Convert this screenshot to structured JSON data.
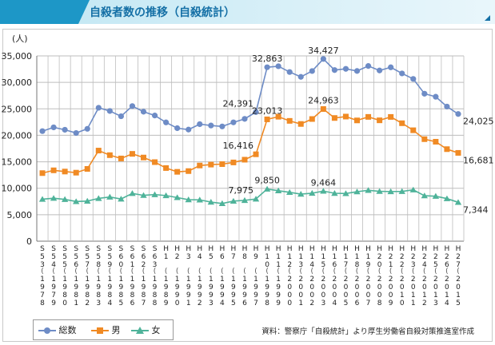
{
  "header": {
    "title": "自殺者数の推移（自殺統計）"
  },
  "source": "資料：警察庁「自殺統計」より厚生労働省自殺対策推進室作成",
  "colors": {
    "total": "#6e8cc6",
    "male": "#f08a24",
    "female": "#4fb39a",
    "grid": "#bdbdbd"
  },
  "chart_data": {
    "type": "line",
    "title": "自殺者数の推移（自殺統計）",
    "ylabel": "(人)",
    "ylim": [
      0,
      35000
    ],
    "yticks": [
      0,
      5000,
      10000,
      15000,
      20000,
      25000,
      30000,
      35000
    ],
    "ytick_labels": [
      "0",
      "5,000",
      "10,000",
      "15,000",
      "20,000",
      "25,000",
      "30,000",
      "35,000"
    ],
    "grid": true,
    "legend": "bottom-left",
    "categories": [
      {
        "era": "S53",
        "year": "1978"
      },
      {
        "era": "S54",
        "year": "1979"
      },
      {
        "era": "S55",
        "year": "1980"
      },
      {
        "era": "S56",
        "year": "1981"
      },
      {
        "era": "S57",
        "year": "1982"
      },
      {
        "era": "S58",
        "year": "1983"
      },
      {
        "era": "S59",
        "year": "1984"
      },
      {
        "era": "S60",
        "year": "1985"
      },
      {
        "era": "S61",
        "year": "1986"
      },
      {
        "era": "S62",
        "year": "1987"
      },
      {
        "era": "S63",
        "year": "1988"
      },
      {
        "era": "H1",
        "year": "1989"
      },
      {
        "era": "H2",
        "year": "1990"
      },
      {
        "era": "H3",
        "year": "1991"
      },
      {
        "era": "H4",
        "year": "1992"
      },
      {
        "era": "H5",
        "year": "1993"
      },
      {
        "era": "H6",
        "year": "1994"
      },
      {
        "era": "H7",
        "year": "1995"
      },
      {
        "era": "H8",
        "year": "1996"
      },
      {
        "era": "H9",
        "year": "1997"
      },
      {
        "era": "H10",
        "year": "1998"
      },
      {
        "era": "H11",
        "year": "1999"
      },
      {
        "era": "H12",
        "year": "2000"
      },
      {
        "era": "H13",
        "year": "2001"
      },
      {
        "era": "H14",
        "year": "2002"
      },
      {
        "era": "H15",
        "year": "2003"
      },
      {
        "era": "H16",
        "year": "2004"
      },
      {
        "era": "H17",
        "year": "2005"
      },
      {
        "era": "H18",
        "year": "2006"
      },
      {
        "era": "H19",
        "year": "2007"
      },
      {
        "era": "H20",
        "year": "2008"
      },
      {
        "era": "H21",
        "year": "2009"
      },
      {
        "era": "H22",
        "year": "2010"
      },
      {
        "era": "H23",
        "year": "2011"
      },
      {
        "era": "H24",
        "year": "2012"
      },
      {
        "era": "H25",
        "year": "2013"
      },
      {
        "era": "H26",
        "year": "2014"
      },
      {
        "era": "H27",
        "year": "2015"
      }
    ],
    "series": [
      {
        "name": "総数",
        "key": "total",
        "marker": "circle",
        "values": [
          20788,
          21503,
          21048,
          20434,
          21228,
          25202,
          24596,
          23599,
          25524,
          24460,
          23742,
          22436,
          21346,
          21084,
          22104,
          21851,
          21679,
          22445,
          23104,
          24391,
          32863,
          33048,
          31957,
          31042,
          32143,
          34427,
          32325,
          32552,
          32155,
          33093,
          32249,
          32845,
          31690,
          30651,
          27858,
          27283,
          25427,
          24025
        ],
        "labels": [
          {
            "index": 19,
            "text": "24,391"
          },
          {
            "index": 20,
            "text": "32,863"
          },
          {
            "index": 25,
            "text": "34,427"
          },
          {
            "index": 37,
            "text": "24,025"
          }
        ]
      },
      {
        "name": "男",
        "key": "male",
        "marker": "square",
        "values": [
          12859,
          13386,
          13155,
          12942,
          13654,
          17116,
          16251,
          15624,
          16497,
          15802,
          14934,
          13818,
          13102,
          13242,
          14296,
          14468,
          14560,
          14874,
          15393,
          16416,
          23013,
          23512,
          22727,
          22144,
          23080,
          24963,
          23272,
          23540,
          22813,
          23478,
          22831,
          23472,
          22283,
          20955,
          19273,
          18787,
          17386,
          16681
        ],
        "labels": [
          {
            "index": 19,
            "text": "16,416"
          },
          {
            "index": 20,
            "text": "23,013"
          },
          {
            "index": 25,
            "text": "24,963"
          },
          {
            "index": 37,
            "text": "16,681"
          }
        ]
      },
      {
        "name": "女",
        "key": "female",
        "marker": "triangle",
        "values": [
          7929,
          8117,
          7893,
          7492,
          7574,
          8086,
          8345,
          7975,
          9027,
          8658,
          8808,
          8618,
          8244,
          7842,
          7808,
          7383,
          7119,
          7571,
          7711,
          7975,
          9850,
          9536,
          9230,
          8898,
          9063,
          9464,
          9053,
          9012,
          9342,
          9615,
          9418,
          9373,
          9407,
          9696,
          8585,
          8496,
          8041,
          7344
        ],
        "labels": [
          {
            "index": 19,
            "text": "7,975"
          },
          {
            "index": 20,
            "text": "9,850"
          },
          {
            "index": 25,
            "text": "9,464"
          },
          {
            "index": 37,
            "text": "7,344"
          }
        ]
      }
    ]
  }
}
